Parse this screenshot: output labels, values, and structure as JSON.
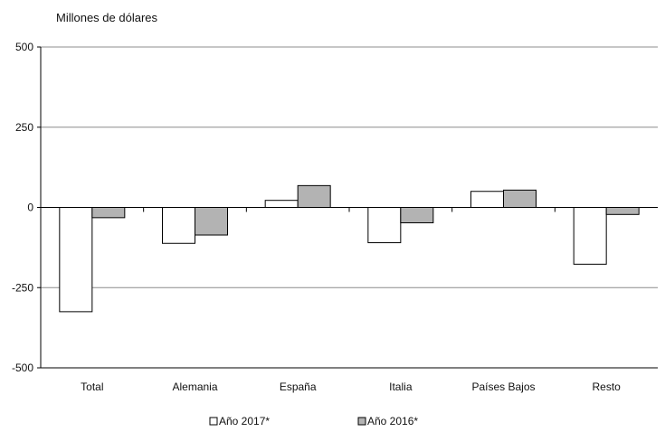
{
  "chart_data": {
    "type": "bar",
    "ylabel": "Millones de dólares",
    "categories": [
      "Total",
      "Alemania",
      "España",
      "Italia",
      "Países Bajos",
      "Resto"
    ],
    "series": [
      {
        "name": "Año 2017*",
        "values": [
          -325,
          -112,
          22,
          -110,
          50,
          -177
        ],
        "fill": "#ffffff"
      },
      {
        "name": "Año 2016*",
        "values": [
          -32,
          -86,
          68,
          -48,
          54,
          -22
        ],
        "fill": "#b3b3b3"
      }
    ],
    "ylim": [
      -500,
      500
    ],
    "yticks": [
      500,
      250,
      0,
      -250,
      -500
    ],
    "ytick_labels": [
      "500",
      "250",
      "0",
      "-250",
      "-500"
    ],
    "grid": true,
    "legend_position": "bottom"
  }
}
